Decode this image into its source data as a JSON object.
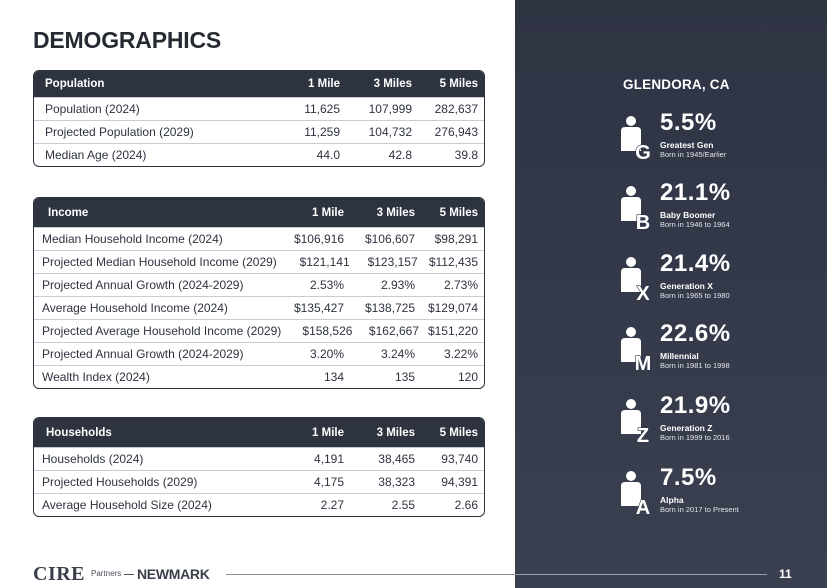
{
  "title": "DEMOGRAPHICS",
  "population": {
    "header": [
      "Population",
      "1 Mile",
      "3 Miles",
      "5 Miles"
    ],
    "rows": [
      [
        "Population (2024)",
        "11,625",
        "107,999",
        "282,637"
      ],
      [
        "Projected Population (2029)",
        "11,259",
        "104,732",
        "276,943"
      ],
      [
        "Median Age (2024)",
        "44.0",
        "42.8",
        "39.8"
      ]
    ]
  },
  "income": {
    "header": [
      "Income",
      "1 Mile",
      "3 Miles",
      "5 Miles"
    ],
    "rows": [
      [
        "Median Household Income (2024)",
        "$106,916",
        "$106,607",
        "$98,291"
      ],
      [
        "Projected Median Household Income (2029)",
        "$121,141",
        "$123,157",
        "$112,435"
      ],
      [
        "Projected Annual Growth (2024-2029)",
        "2.53%",
        "2.93%",
        "2.73%"
      ],
      [
        "Average Household Income (2024)",
        "$135,427",
        "$138,725",
        "$129,074"
      ],
      [
        "Projected Average Household Income (2029)",
        "$158,526",
        "$162,667",
        "$151,220"
      ],
      [
        "Projected Annual Growth (2024-2029)",
        "3.20%",
        "3.24%",
        "3.22%"
      ],
      [
        "Wealth Index (2024)",
        "134",
        "135",
        "120"
      ]
    ]
  },
  "households": {
    "header": [
      "Households",
      "1 Mile",
      "3 Miles",
      "5 Miles"
    ],
    "rows": [
      [
        "Households (2024)",
        "4,191",
        "38,465",
        "93,740"
      ],
      [
        "Projected Households (2029)",
        "4,175",
        "38,323",
        "94,391"
      ],
      [
        "Average Household Size (2024)",
        "2.27",
        "2.55",
        "2.66"
      ]
    ]
  },
  "sidebar": {
    "location": "GLENDORA, CA",
    "generations": [
      {
        "letter": "G",
        "percent": "5.5%",
        "name": "Greatest Gen",
        "born": "Born in 1945/Earlier"
      },
      {
        "letter": "B",
        "percent": "21.1%",
        "name": "Baby Boomer",
        "born": "Born in 1946 to 1964"
      },
      {
        "letter": "X",
        "percent": "21.4%",
        "name": "Generation X",
        "born": "Born in 1965 to 1980"
      },
      {
        "letter": "M",
        "percent": "22.6%",
        "name": "Millennial",
        "born": "Born in 1981 to 1998"
      },
      {
        "letter": "Z",
        "percent": "21.9%",
        "name": "Generation Z",
        "born": "Born in 1999 to 2016"
      },
      {
        "letter": "A",
        "percent": "7.5%",
        "name": "Alpha",
        "born": "Born in 2017 to Present"
      }
    ]
  },
  "footer": {
    "logo_cire": "CIRE",
    "logo_partners": "Partners",
    "logo_newmark": "NEWMARK",
    "page_number": "11"
  }
}
